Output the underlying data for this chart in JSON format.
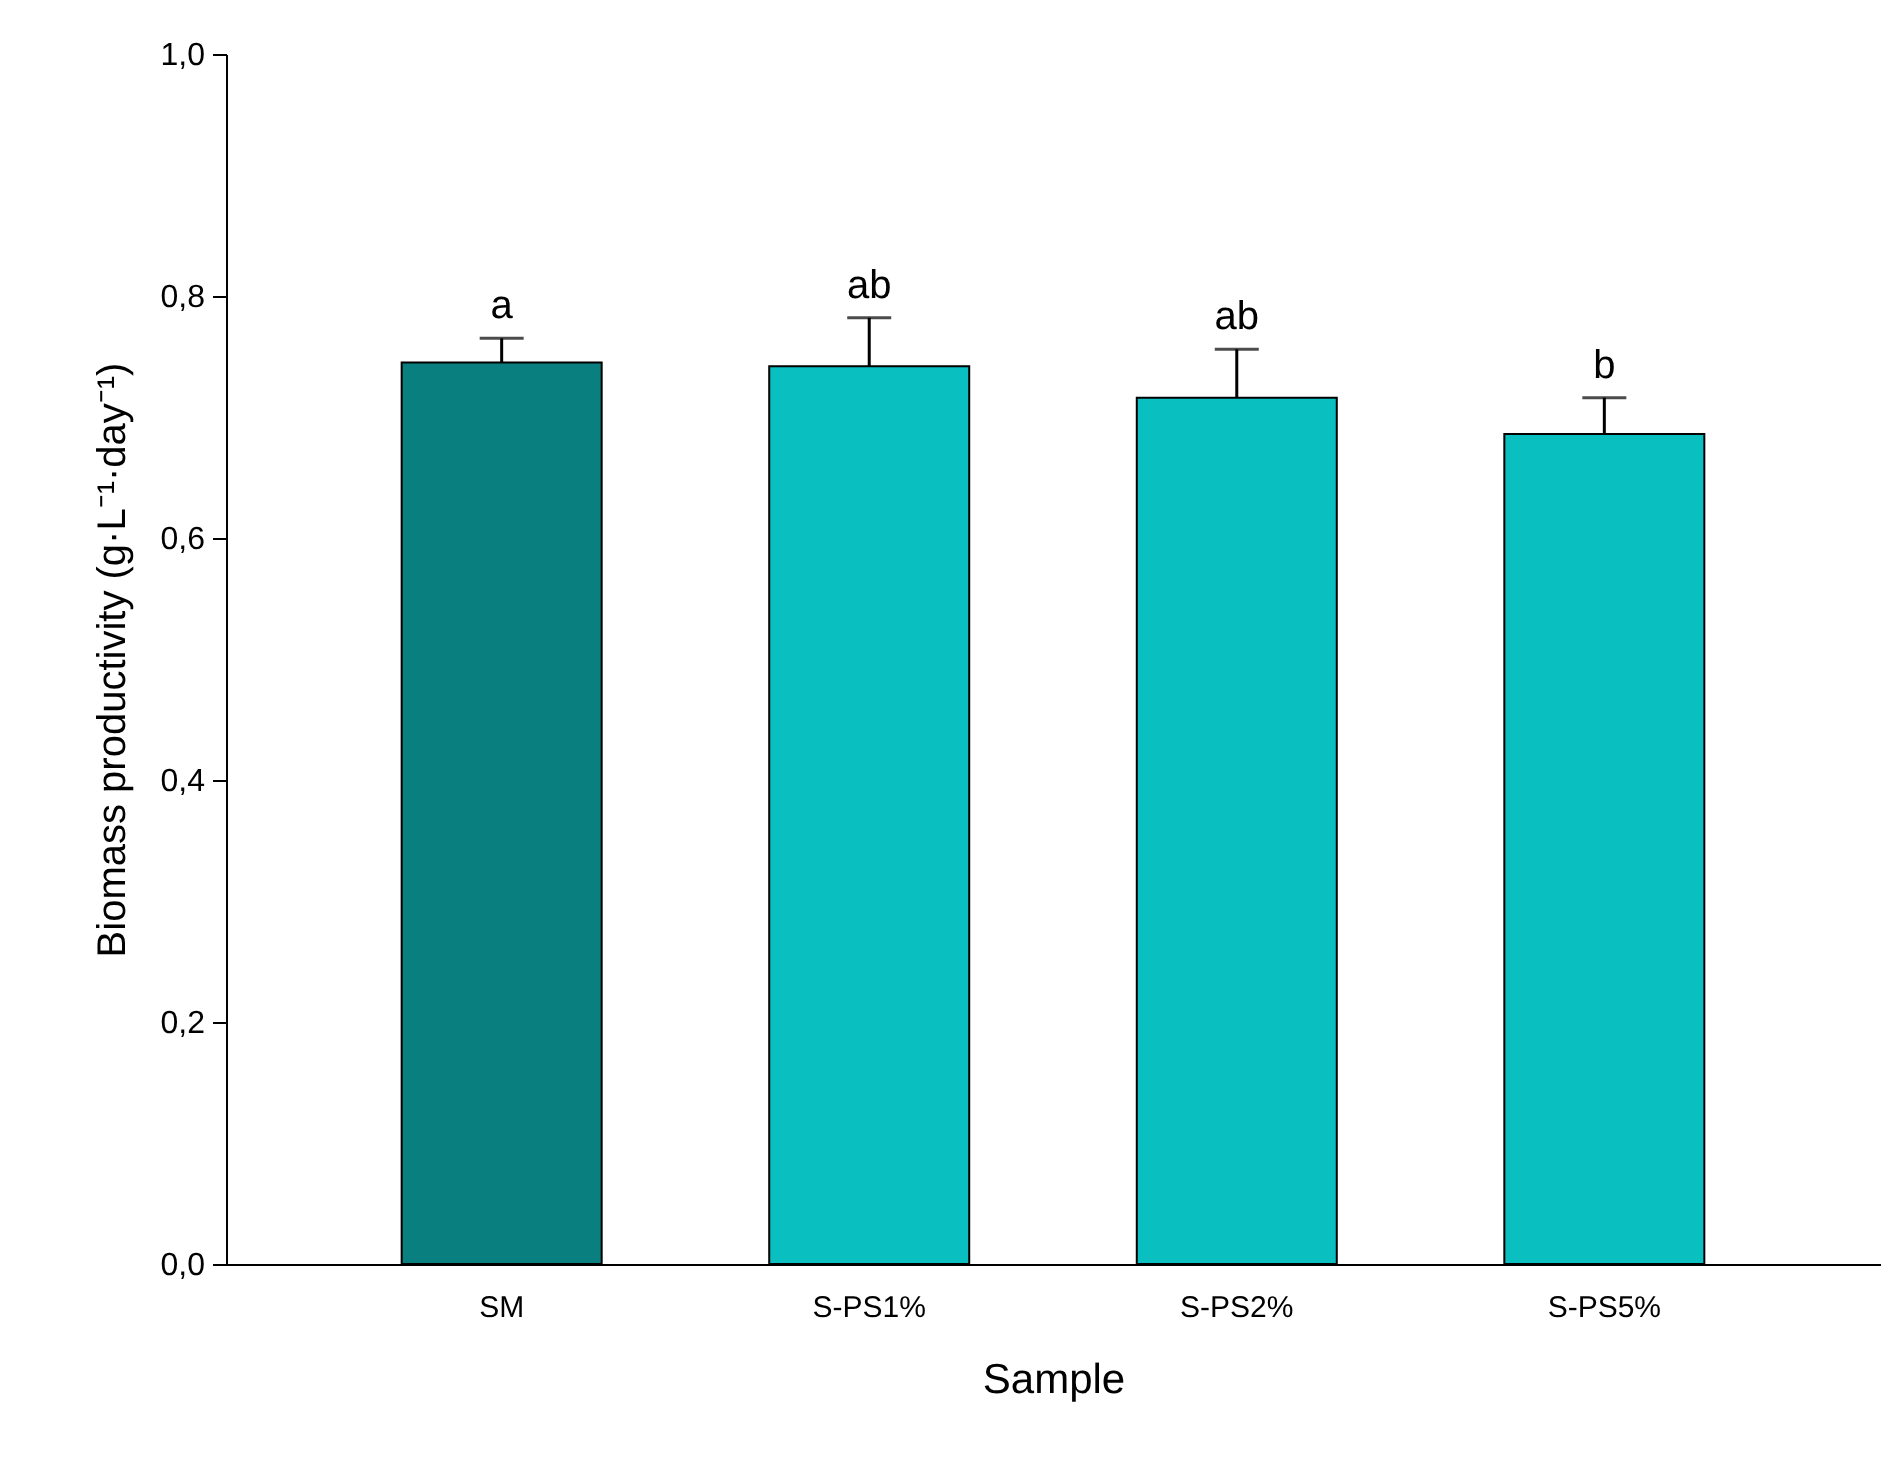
{
  "chart_data": {
    "type": "bar",
    "xlabel": "Sample",
    "ylabel": "Biomass productivity (g·L⁻¹·day⁻¹)",
    "categories": [
      "SM",
      "S-PS1%",
      "S-PS2%",
      "S-PS5%"
    ],
    "values": [
      0.745,
      0.742,
      0.716,
      0.686
    ],
    "colors": [
      "#0a7f7f",
      "#0abfbf",
      "#0abfbf",
      "#0abfbf"
    ],
    "errors": [
      0.02,
      0.04,
      0.04,
      0.03
    ],
    "ylim": [
      0,
      1
    ],
    "yticks": [
      {
        "value": 0,
        "label": "0,0"
      },
      {
        "value": 0.2,
        "label": "0,2"
      },
      {
        "value": 0.4,
        "label": "0,4"
      },
      {
        "value": 0.6,
        "label": "0,6"
      },
      {
        "value": 0.8,
        "label": "0,8"
      },
      {
        "value": 1,
        "label": "1,0"
      }
    ],
    "annotations": [
      {
        "text": "a",
        "x": "SM",
        "y": 0.765
      },
      {
        "text": "ab",
        "x": "S-PS1%",
        "y": 0.782
      },
      {
        "text": "ab",
        "x": "S-PS2%",
        "y": 0.756
      },
      {
        "text": "b",
        "x": "S-PS5%",
        "y": 0.716
      }
    ],
    "grid": false
  }
}
